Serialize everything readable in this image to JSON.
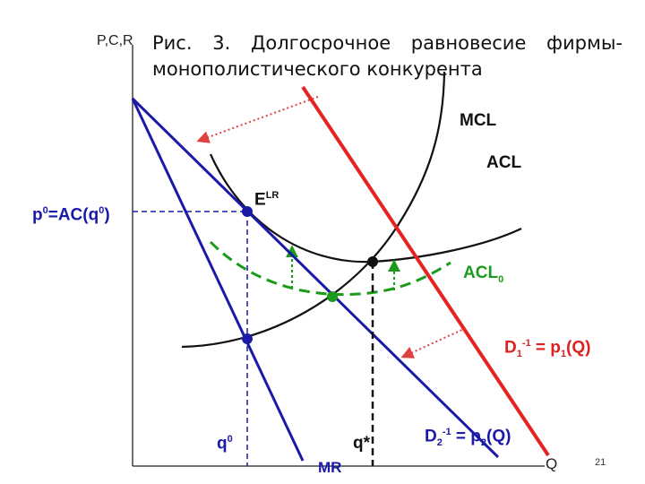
{
  "caption": {
    "line1": [
      "Рис.",
      "3.",
      "Долгосрочное",
      "равновесие",
      "фирмы-"
    ],
    "line2": "монополистического конкурента"
  },
  "axes": {
    "y_label": "P,C,R",
    "x_label": "Q"
  },
  "labels": {
    "mcl": "MCL",
    "acl": "ACL",
    "acl0_main": "ACL",
    "acl0_sub": "0",
    "elr_main": "E",
    "elr_sup": "LR",
    "p0_a": "p",
    "p0_a_sup": "0",
    "p0_b": "=AC(q",
    "p0_b_sup": "0",
    "p0_c": ")",
    "d1_a": "D",
    "d1_a_sub": "1",
    "d1_a_sup": "-1",
    "d1_b": " = p",
    "d1_b_sub": "1",
    "d1_c": "(Q)",
    "d2_a": "D",
    "d2_a_sub": "2",
    "d2_a_sup": "-1",
    "d2_b": " = p",
    "d2_b_sub": "2",
    "d2_c": "(Q)",
    "q0_main": "q",
    "q0_sup": "0",
    "qstar": "q*",
    "mr": "MR"
  },
  "page_number": "21",
  "colors": {
    "demand_red": "#e52222",
    "demand_blue": "#1a1aa8",
    "cost_black": "#111111",
    "acl0_green": "#1b9a1b",
    "shift_arrow": "#e04040"
  }
}
